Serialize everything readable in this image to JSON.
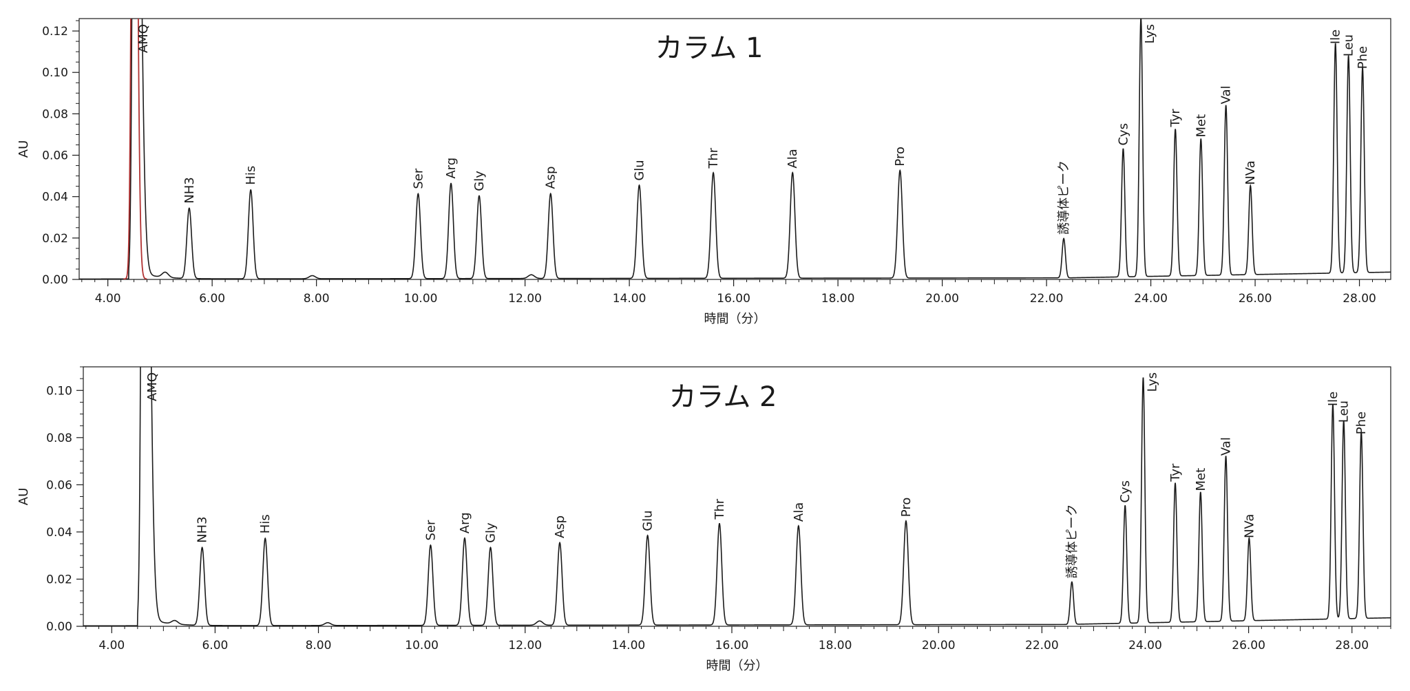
{
  "chart_data": [
    {
      "type": "line",
      "title": "カラム 1",
      "xlabel": "時間（分）",
      "ylabel": "AU",
      "xlim": [
        3.45,
        28.6
      ],
      "ylim": [
        0,
        0.126
      ],
      "x_ticks": [
        4,
        6,
        8,
        10,
        12,
        14,
        16,
        18,
        20,
        22,
        24,
        26,
        28
      ],
      "x_tick_labels": [
        "4.00",
        "6.00",
        "8.00",
        "10.00",
        "12.00",
        "14.00",
        "16.00",
        "18.00",
        "20.00",
        "22.00",
        "24.00",
        "26.00",
        "28.00"
      ],
      "y_ticks": [
        0,
        0.02,
        0.04,
        0.06,
        0.08,
        0.1,
        0.12
      ],
      "y_tick_labels": [
        "0.00",
        "0.02",
        "0.04",
        "0.06",
        "0.08",
        "0.10",
        "0.12"
      ],
      "grid": false,
      "trace_color": "#1a1a1a",
      "highlight_color": "#b03030",
      "peaks": [
        {
          "label": "AMQ",
          "time": 4.52,
          "height": 0.4
        },
        {
          "label": "NH3",
          "time": 5.56,
          "height": 0.034
        },
        {
          "label": "His",
          "time": 6.74,
          "height": 0.043
        },
        {
          "label": "Ser",
          "time": 9.95,
          "height": 0.041
        },
        {
          "label": "Arg",
          "time": 10.58,
          "height": 0.046
        },
        {
          "label": "Gly",
          "time": 11.12,
          "height": 0.04
        },
        {
          "label": "Asp",
          "time": 12.49,
          "height": 0.041
        },
        {
          "label": "Glu",
          "time": 14.19,
          "height": 0.045
        },
        {
          "label": "Thr",
          "time": 15.61,
          "height": 0.051
        },
        {
          "label": "Ala",
          "time": 17.13,
          "height": 0.051
        },
        {
          "label": "Pro",
          "time": 19.19,
          "height": 0.052
        },
        {
          "label": "誘導体ピーク",
          "time": 22.33,
          "height": 0.019
        },
        {
          "label": "Cys",
          "time": 23.47,
          "height": 0.062
        },
        {
          "label": "Lys",
          "time": 23.81,
          "height": 0.125
        },
        {
          "label": "Tyr",
          "time": 24.47,
          "height": 0.071
        },
        {
          "label": "Met",
          "time": 24.96,
          "height": 0.066
        },
        {
          "label": "Val",
          "time": 25.44,
          "height": 0.082
        },
        {
          "label": "NVa",
          "time": 25.91,
          "height": 0.043
        },
        {
          "label": "Ile",
          "time": 27.54,
          "height": 0.111
        },
        {
          "label": "Leu",
          "time": 27.79,
          "height": 0.105
        },
        {
          "label": "Phe",
          "time": 28.06,
          "height": 0.099
        }
      ],
      "minor_peaks": [
        {
          "time": 5.1,
          "height": 0.0025
        },
        {
          "time": 7.92,
          "height": 0.0015
        },
        {
          "time": 12.12,
          "height": 0.0018
        }
      ]
    },
    {
      "type": "line",
      "title": "カラム 2",
      "xlabel": "時間（分）",
      "ylabel": "AU",
      "xlim": [
        3.45,
        28.75
      ],
      "ylim": [
        0,
        0.11
      ],
      "x_ticks": [
        4,
        6,
        8,
        10,
        12,
        14,
        16,
        18,
        20,
        22,
        24,
        26,
        28
      ],
      "x_tick_labels": [
        "4.00",
        "6.00",
        "8.00",
        "10.00",
        "12.00",
        "14.00",
        "16.00",
        "18.00",
        "20.00",
        "22.00",
        "24.00",
        "26.00",
        "28.00"
      ],
      "y_ticks": [
        0,
        0.02,
        0.04,
        0.06,
        0.08,
        0.1
      ],
      "y_tick_labels": [
        "0.00",
        "0.02",
        "0.04",
        "0.06",
        "0.08",
        "0.10"
      ],
      "grid": false,
      "trace_color": "#1a1a1a",
      "peaks": [
        {
          "label": "AMQ",
          "time": 4.62,
          "height": 0.4
        },
        {
          "label": "NH3",
          "time": 5.75,
          "height": 0.033
        },
        {
          "label": "His",
          "time": 6.97,
          "height": 0.037
        },
        {
          "label": "Ser",
          "time": 10.17,
          "height": 0.034
        },
        {
          "label": "Arg",
          "time": 10.83,
          "height": 0.037
        },
        {
          "label": "Gly",
          "time": 11.33,
          "height": 0.033
        },
        {
          "label": "Asp",
          "time": 12.67,
          "height": 0.035
        },
        {
          "label": "Glu",
          "time": 14.37,
          "height": 0.038
        },
        {
          "label": "Thr",
          "time": 15.76,
          "height": 0.043
        },
        {
          "label": "Ala",
          "time": 17.29,
          "height": 0.042
        },
        {
          "label": "Pro",
          "time": 19.37,
          "height": 0.044
        },
        {
          "label": "誘導体ピーク",
          "time": 22.58,
          "height": 0.018
        },
        {
          "label": "Cys",
          "time": 23.61,
          "height": 0.05
        },
        {
          "label": "Lys",
          "time": 23.96,
          "height": 0.104
        },
        {
          "label": "Tyr",
          "time": 24.58,
          "height": 0.059
        },
        {
          "label": "Met",
          "time": 25.07,
          "height": 0.055
        },
        {
          "label": "Val",
          "time": 25.56,
          "height": 0.07
        },
        {
          "label": "NVa",
          "time": 26.01,
          "height": 0.035
        },
        {
          "label": "Ile",
          "time": 27.63,
          "height": 0.091
        },
        {
          "label": "Leu",
          "time": 27.84,
          "height": 0.084
        },
        {
          "label": "Phe",
          "time": 28.18,
          "height": 0.079
        }
      ],
      "minor_peaks": [
        {
          "time": 5.22,
          "height": 0.0015
        },
        {
          "time": 8.18,
          "height": 0.0012
        },
        {
          "time": 12.28,
          "height": 0.0018
        }
      ]
    }
  ]
}
